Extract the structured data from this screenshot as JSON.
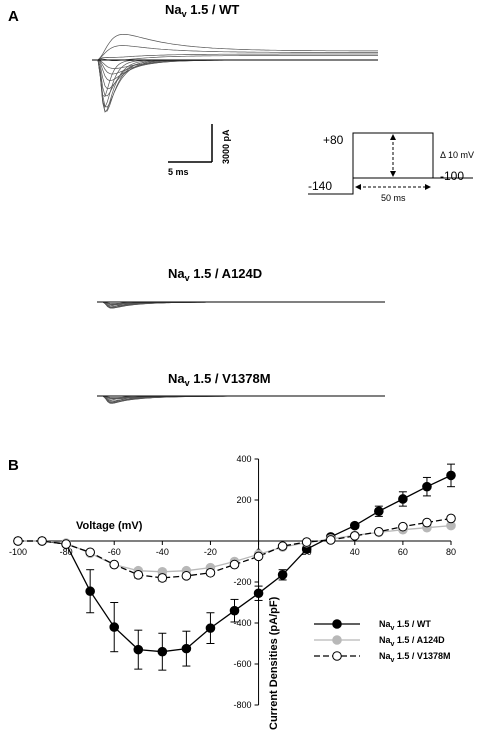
{
  "panel_a": {
    "letter": "A",
    "titles": [
      {
        "main": "Na",
        "sub": "v",
        "rest": " 1.5 / WT"
      },
      {
        "main": "Na",
        "sub": "v",
        "rest": " 1.5 / A124D"
      },
      {
        "main": "Na",
        "sub": "v",
        "rest": " 1.5 / V1378M"
      }
    ],
    "scale_bar": {
      "time_label": "5 ms",
      "current_label": "3000 pA"
    },
    "protocol": {
      "top_label": "+80",
      "hold_label": "-140",
      "bottom_label": "-100",
      "step_label": "Δ 10 mV",
      "duration_label": "50 ms"
    }
  },
  "panel_b": {
    "letter": "B"
  },
  "chart_data": {
    "type": "line",
    "xlabel": "Voltage (mV)",
    "ylabel": "Current Densities (pA/pF)",
    "xlim": [
      -100,
      80
    ],
    "ylim": [
      -800,
      400
    ],
    "xticks": [
      -100,
      -80,
      -60,
      -40,
      -20,
      0,
      20,
      40,
      60,
      80
    ],
    "xtick_labels": [
      "-100",
      "-80",
      "-60",
      "-40",
      "-20",
      "0",
      "20",
      "40",
      "60",
      "80"
    ],
    "yticks": [
      -800,
      -600,
      -400,
      -200,
      0,
      200,
      400
    ],
    "ytick_labels": [
      "-800",
      "-600",
      "-400",
      "-200",
      "0",
      "200",
      "400"
    ],
    "legend_position": "bottom-right",
    "x": [
      -100,
      -90,
      -80,
      -70,
      -60,
      -50,
      -40,
      -30,
      -20,
      -10,
      0,
      10,
      20,
      30,
      40,
      50,
      60,
      70,
      80
    ],
    "series": [
      {
        "name": "Na",
        "name_sub": "v",
        "name_rest": " 1.5 / WT",
        "color": "#000000",
        "marker": "filled",
        "dash": "solid",
        "values": [
          0,
          0,
          -15,
          -245,
          -420,
          -530,
          -540,
          -525,
          -425,
          -340,
          -255,
          -165,
          -40,
          20,
          75,
          145,
          205,
          265,
          320
        ],
        "errors": [
          0,
          0,
          10,
          105,
          120,
          95,
          90,
          85,
          75,
          55,
          35,
          25,
          15,
          10,
          12,
          25,
          35,
          45,
          55
        ]
      },
      {
        "name": "Na",
        "name_sub": "v",
        "name_rest": " 1.5 / A124D",
        "color": "#b8b8b8",
        "marker": "filled",
        "dash": "solid",
        "values": [
          0,
          0,
          -10,
          -60,
          -115,
          -145,
          -150,
          -145,
          -130,
          -100,
          -65,
          -30,
          -8,
          10,
          28,
          42,
          55,
          65,
          75
        ],
        "errors": [
          0,
          0,
          5,
          8,
          10,
          12,
          12,
          10,
          10,
          8,
          8,
          6,
          5,
          5,
          5,
          6,
          8,
          8,
          10
        ]
      },
      {
        "name": "Na",
        "name_sub": "v",
        "name_rest": " 1.5 / V1378M",
        "color": "#000000",
        "marker": "open",
        "dash": "dashed",
        "values": [
          0,
          0,
          -15,
          -55,
          -115,
          -165,
          -180,
          -170,
          -155,
          -115,
          -75,
          -25,
          -5,
          5,
          25,
          45,
          70,
          90,
          110
        ],
        "errors": [
          0,
          0,
          5,
          8,
          10,
          15,
          15,
          12,
          12,
          10,
          8,
          6,
          5,
          5,
          5,
          6,
          8,
          10,
          10
        ]
      }
    ]
  }
}
